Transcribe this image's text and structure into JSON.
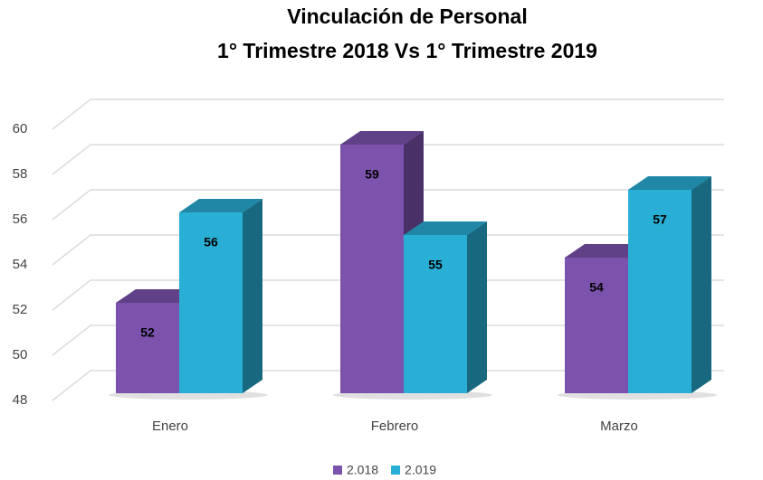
{
  "chart_data": {
    "type": "bar3d",
    "title": "Vinculación de Personal",
    "subtitle": "1° Trimestre 2018 Vs 1° Trimestre 2019",
    "categories": [
      "Enero",
      "Febrero",
      "Marzo"
    ],
    "series": [
      {
        "name": "2.018",
        "color": "#7b53ad",
        "values": [
          52,
          59,
          54
        ]
      },
      {
        "name": "2.019",
        "color": "#29afd5",
        "values": [
          56,
          55,
          57
        ]
      }
    ],
    "ylim": [
      48,
      60
    ],
    "yticks": [
      48,
      50,
      52,
      54,
      56,
      58,
      60
    ],
    "grid": true,
    "legend": "bottom"
  }
}
